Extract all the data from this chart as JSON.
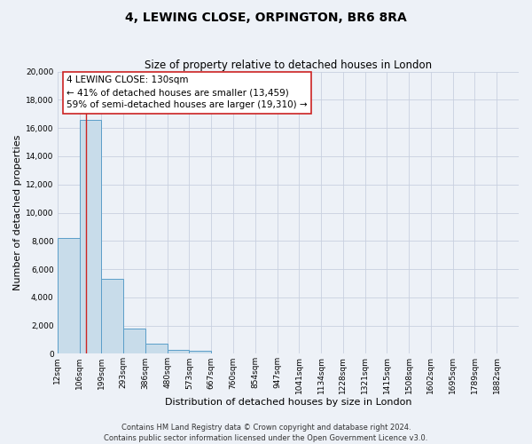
{
  "title": "4, LEWING CLOSE, ORPINGTON, BR6 8RA",
  "subtitle": "Size of property relative to detached houses in London",
  "bar_values": [
    8200,
    16600,
    5300,
    1800,
    750,
    300,
    200,
    0,
    0,
    0,
    0,
    0,
    0,
    0,
    0,
    0,
    0,
    0,
    0,
    0
  ],
  "bar_labels": [
    "12sqm",
    "106sqm",
    "199sqm",
    "293sqm",
    "386sqm",
    "480sqm",
    "573sqm",
    "667sqm",
    "760sqm",
    "854sqm",
    "947sqm",
    "1041sqm",
    "1134sqm",
    "1228sqm",
    "1321sqm",
    "1415sqm",
    "1508sqm",
    "1602sqm",
    "1695sqm",
    "1789sqm",
    "1882sqm"
  ],
  "bar_color": "#c8dcea",
  "bar_edge_color": "#5b9ec9",
  "highlight_line_color": "#cc2222",
  "annotation_text_line1": "4 LEWING CLOSE: 130sqm",
  "annotation_text_line2": "← 41% of detached houses are smaller (13,459)",
  "annotation_text_line3": "59% of semi-detached houses are larger (19,310) →",
  "xlabel": "Distribution of detached houses by size in London",
  "ylabel": "Number of detached properties",
  "ylim": [
    0,
    20000
  ],
  "yticks": [
    0,
    2000,
    4000,
    6000,
    8000,
    10000,
    12000,
    14000,
    16000,
    18000,
    20000
  ],
  "grid_color": "#c8d0e0",
  "bg_color": "#edf1f7",
  "footer_line1": "Contains HM Land Registry data © Crown copyright and database right 2024.",
  "footer_line2": "Contains public sector information licensed under the Open Government Licence v3.0.",
  "title_fontsize": 10,
  "subtitle_fontsize": 8.5,
  "tick_fontsize": 6.5,
  "label_fontsize": 8,
  "annotation_fontsize": 7.5,
  "footer_fontsize": 6
}
